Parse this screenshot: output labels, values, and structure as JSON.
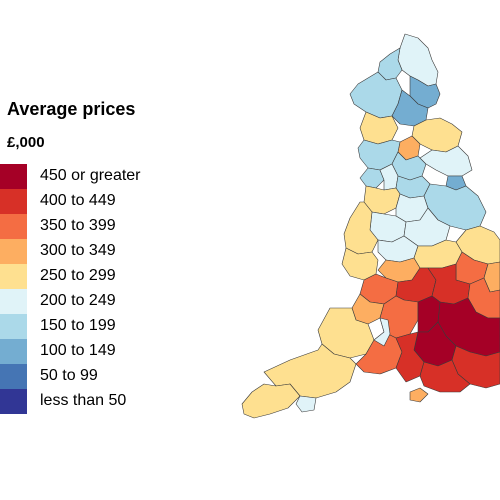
{
  "legend": {
    "title": "Average prices",
    "unit": "£,000",
    "classes": [
      {
        "label": "450 or greater",
        "color": "#a50026"
      },
      {
        "label": "400 to 449",
        "color": "#d73027"
      },
      {
        "label": "350 to 399",
        "color": "#f46d43"
      },
      {
        "label": "300 to 349",
        "color": "#fdae61"
      },
      {
        "label": "250 to 299",
        "color": "#fee090"
      },
      {
        "label": "200 to 249",
        "color": "#e0f3f8"
      },
      {
        "label": "150 to 199",
        "color": "#abd9e9"
      },
      {
        "label": "100 to 149",
        "color": "#74add1"
      },
      {
        "label": "50 to 99",
        "color": "#4575b4"
      },
      {
        "label": "less than 50",
        "color": "#313695"
      }
    ]
  },
  "map": {
    "regions": [
      {
        "id": "northumberland",
        "cls": "200 to 249"
      },
      {
        "id": "north-border",
        "cls": "150 to 199"
      },
      {
        "id": "cumbria-west",
        "cls": "150 to 199"
      },
      {
        "id": "cumbria-south",
        "cls": "250 to 299"
      },
      {
        "id": "north-east-urban",
        "cls": "100 to 149"
      },
      {
        "id": "durham",
        "cls": "100 to 149"
      },
      {
        "id": "north-yorkshire",
        "cls": "250 to 299"
      },
      {
        "id": "harrogate",
        "cls": "300 to 349"
      },
      {
        "id": "lancashire",
        "cls": "150 to 199"
      },
      {
        "id": "west-yorkshire",
        "cls": "150 to 199"
      },
      {
        "id": "east-riding",
        "cls": "200 to 249"
      },
      {
        "id": "hull",
        "cls": "100 to 149"
      },
      {
        "id": "merseyside",
        "cls": "150 to 199"
      },
      {
        "id": "greater-manchester",
        "cls": "200 to 249"
      },
      {
        "id": "south-yorkshire",
        "cls": "150 to 199"
      },
      {
        "id": "cheshire",
        "cls": "250 to 299"
      },
      {
        "id": "derbyshire",
        "cls": "200 to 249"
      },
      {
        "id": "lincolnshire",
        "cls": "150 to 199"
      },
      {
        "id": "staffordshire",
        "cls": "200 to 249"
      },
      {
        "id": "shropshire",
        "cls": "250 to 299"
      },
      {
        "id": "east-midlands",
        "cls": "200 to 249"
      },
      {
        "id": "west-midlands",
        "cls": "200 to 249"
      },
      {
        "id": "norfolk",
        "cls": "250 to 299"
      },
      {
        "id": "herefordshire",
        "cls": "250 to 299"
      },
      {
        "id": "warwickshire",
        "cls": "300 to 349"
      },
      {
        "id": "northants",
        "cls": "250 to 299"
      },
      {
        "id": "cambridgeshire",
        "cls": "350 to 399"
      },
      {
        "id": "suffolk",
        "cls": "300 to 349"
      },
      {
        "id": "gloucestershire",
        "cls": "350 to 399"
      },
      {
        "id": "oxfordshire",
        "cls": "400 to 449"
      },
      {
        "id": "home-counties-north",
        "cls": "400 to 449"
      },
      {
        "id": "essex",
        "cls": "350 to 399"
      },
      {
        "id": "london",
        "cls": "450 or greater"
      },
      {
        "id": "bristol",
        "cls": "300 to 349"
      },
      {
        "id": "wiltshire",
        "cls": "350 to 399"
      },
      {
        "id": "berkshire",
        "cls": "450 or greater"
      },
      {
        "id": "surrey",
        "cls": "450 or greater"
      },
      {
        "id": "kent",
        "cls": "400 to 449"
      },
      {
        "id": "somerset",
        "cls": "250 to 299"
      },
      {
        "id": "dorset",
        "cls": "350 to 399"
      },
      {
        "id": "hampshire",
        "cls": "400 to 449"
      },
      {
        "id": "sussex",
        "cls": "400 to 449"
      },
      {
        "id": "devon",
        "cls": "250 to 299"
      },
      {
        "id": "cornwall",
        "cls": "250 to 299"
      },
      {
        "id": "isle-of-wight",
        "cls": "300 to 349"
      },
      {
        "id": "plymouth",
        "cls": "200 to 249"
      },
      {
        "id": "bridgwater",
        "cls": "200 to 249"
      }
    ]
  }
}
